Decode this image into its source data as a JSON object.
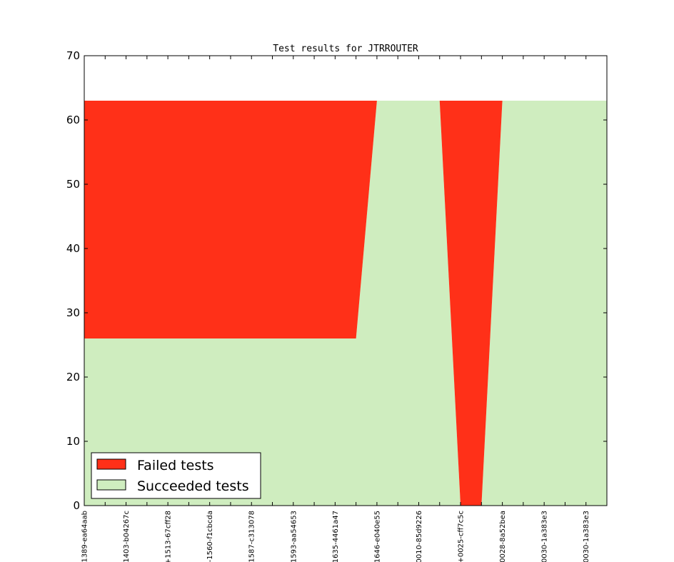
{
  "chart_data": {
    "type": "area",
    "title": "Test results for JTRROUTER",
    "xlabel": "",
    "ylabel": "",
    "ylim": [
      0,
      70
    ],
    "yticks": [
      0,
      10,
      20,
      30,
      40,
      50,
      60,
      70
    ],
    "categories": [
      "1389-ea64aab",
      "1403-b04267c",
      "+1513-67cff28",
      "-1560-f1cbcda",
      "1587-c313078",
      "1593-aa54653",
      "1635-4461a47",
      "1646-e040e55",
      "0010-85d9226",
      "+0025-cff7c5c",
      "0028-8a52bea",
      "0030-1a383e3",
      "0030-1a383e3"
    ],
    "x": [
      0,
      0.5,
      1,
      1.5,
      2,
      2.5,
      3,
      3.5,
      4,
      4.5,
      5,
      5.5,
      6,
      6.5,
      7,
      7.5,
      8,
      8.5,
      9,
      9.5,
      10,
      10.5,
      11,
      11.5,
      12,
      12.5
    ],
    "series": [
      {
        "name": "Succeeded tests",
        "color": "#cfedbf",
        "values": [
          26,
          26,
          26,
          26,
          26,
          26,
          26,
          26,
          26,
          26,
          26,
          26,
          26,
          26,
          63,
          63,
          63,
          63,
          0,
          0,
          63,
          63,
          63,
          63,
          63,
          63
        ]
      },
      {
        "name": "Failed tests",
        "color": "#ff3018",
        "values": [
          37,
          37,
          37,
          37,
          37,
          37,
          37,
          37,
          37,
          37,
          37,
          37,
          37,
          37,
          0,
          0,
          0,
          0,
          63,
          63,
          0,
          0,
          0,
          0,
          0,
          0
        ]
      }
    ],
    "grid": false,
    "legend": {
      "position": "lower-left",
      "entries": [
        "Failed tests",
        "Succeeded tests"
      ]
    }
  }
}
